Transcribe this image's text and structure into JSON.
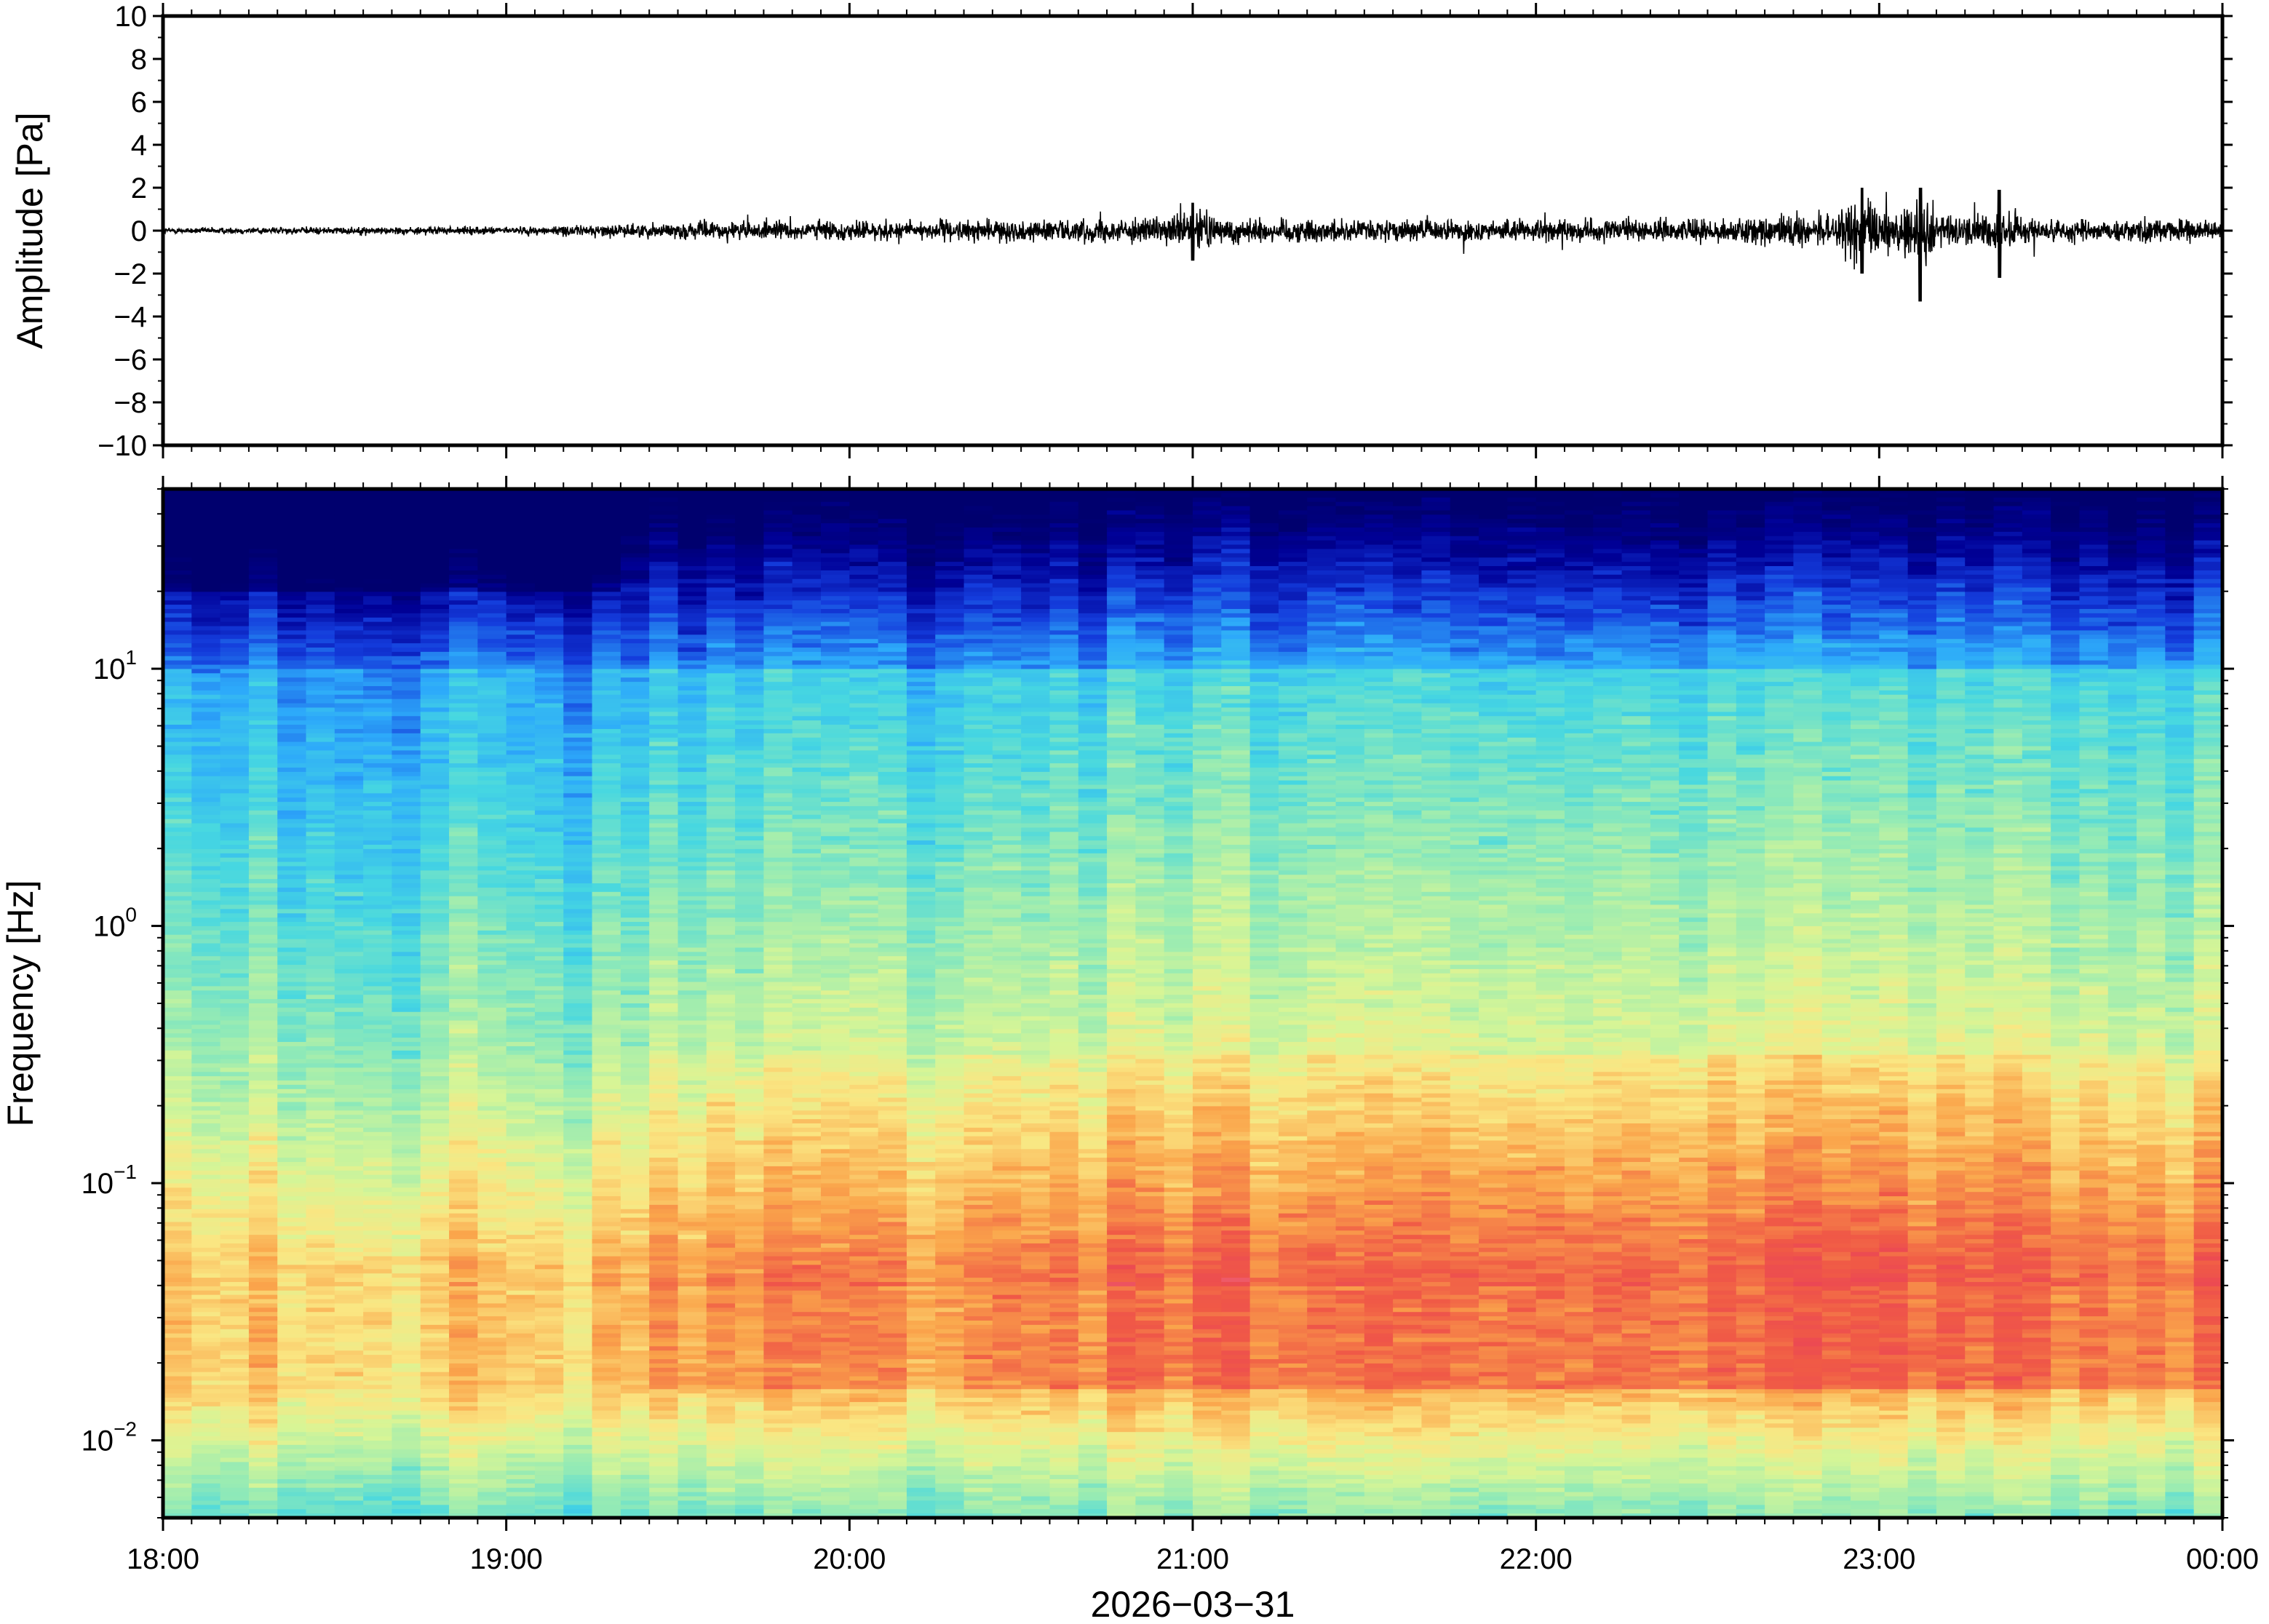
{
  "chart_data": [
    {
      "type": "line",
      "title": "",
      "xlabel": "",
      "ylabel": "Amplitude [Pa]",
      "ylim": [
        -10,
        10
      ],
      "yticks": [
        "10",
        "8",
        "6",
        "4",
        "2",
        "0",
        "−2",
        "−4",
        "−6",
        "−8",
        "−10"
      ],
      "ytick_values": [
        10,
        8,
        6,
        4,
        2,
        0,
        -2,
        -4,
        -6,
        -8,
        -10
      ],
      "xlim_hours": [
        18,
        24
      ],
      "grid": false,
      "series_color": "#000000",
      "envelope": {
        "description_hours": [
          18.0,
          18.5,
          19.0,
          19.3,
          19.6,
          20.0,
          20.5,
          20.9,
          21.1,
          21.5,
          22.0,
          22.5,
          22.9,
          23.1,
          23.3,
          23.6,
          24.0
        ],
        "amplitude_pa": [
          0.2,
          0.25,
          0.25,
          0.4,
          0.6,
          0.65,
          0.7,
          0.8,
          0.9,
          0.7,
          0.7,
          0.75,
          1.2,
          1.4,
          0.9,
          0.8,
          0.7
        ]
      },
      "peaks": [
        {
          "hour": 21.0,
          "max": 1.3,
          "min": -1.4
        },
        {
          "hour": 22.95,
          "max": 2.0,
          "min": -2.0
        },
        {
          "hour": 23.12,
          "max": 2.0,
          "min": -3.3
        },
        {
          "hour": 23.35,
          "max": 1.9,
          "min": -2.2
        }
      ]
    },
    {
      "type": "heatmap",
      "title": "",
      "xlabel": "2026−03−31",
      "ylabel": "Frequency [Hz]",
      "yscale": "log",
      "ylim": [
        0.005,
        50
      ],
      "yticks": [
        {
          "base": "10",
          "exp": "1",
          "value": 10
        },
        {
          "base": "10",
          "exp": "0",
          "value": 1
        },
        {
          "base": "10",
          "exp": "−1",
          "value": 0.1
        },
        {
          "base": "10",
          "exp": "−2",
          "value": 0.01
        }
      ],
      "xticks": [
        "18:00",
        "19:00",
        "20:00",
        "21:00",
        "22:00",
        "23:00",
        "00:00"
      ],
      "xtick_hours": [
        18,
        19,
        20,
        21,
        22,
        23,
        24
      ],
      "colormap": "rainbow",
      "colors": {
        "low": "#00007f",
        "mid_low": "#2db8ff",
        "mid": "#d9f59a",
        "mid_high": "#f9a245",
        "high": "#ee3f4e",
        "peak": "#ffc2c8"
      },
      "description": "Power rises toward low frequencies; strongest energy 0.02–0.1 Hz, increasing after 19:30 and peaking near 23:00."
    }
  ]
}
